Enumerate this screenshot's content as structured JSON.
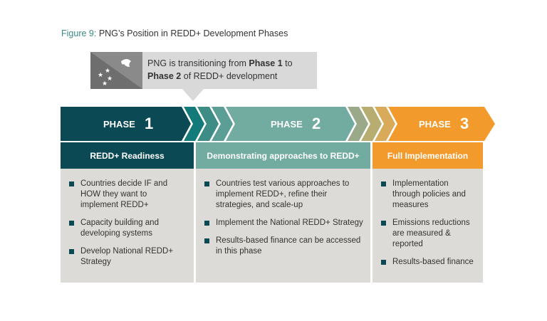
{
  "title": {
    "figure_label": "Figure 9:",
    "text": " PNG’s Position in REDD+ Development Phases"
  },
  "callout": {
    "pre": "PNG is transitioning from ",
    "b1": "Phase 1",
    "mid": " to",
    "b2": "Phase 2",
    "post": " of REDD+ development",
    "icon": "png-flag-icon"
  },
  "phases": [
    {
      "label": "PHASE",
      "number": "1",
      "heading": "REDD+ Readiness",
      "color": "#0b4a55",
      "bullets": [
        "Countries decide IF and HOW they want to implement REDD+",
        "Capacity building and developing systems",
        "Develop National REDD+ Strategy"
      ]
    },
    {
      "label": "PHASE",
      "number": "2",
      "heading": "Demonstrating approaches to REDD+",
      "color": "#72aba0",
      "bullets": [
        "Countries test various approaches to implement REDD+, refine their strategies, and scale-up",
        "Implement the National REDD+ Strategy",
        "Results-based finance can be accessed in this phase"
      ]
    },
    {
      "label": "PHASE",
      "number": "3",
      "heading": "Full Implementation",
      "color": "#f39a2c",
      "bullets": [
        "Implementation through policies and measures",
        "Emissions reductions are measured & reported",
        "Results-based finance"
      ]
    }
  ]
}
